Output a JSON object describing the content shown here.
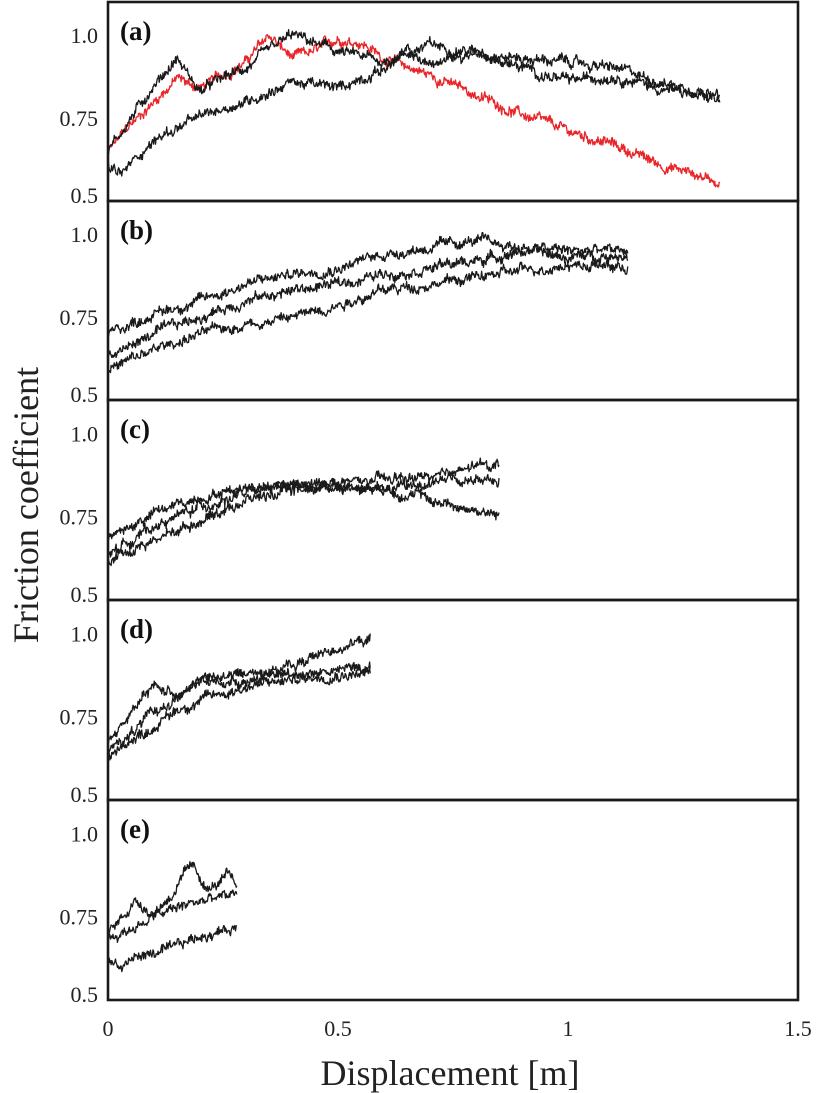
{
  "chart_data": {
    "type": "line",
    "xlabel": "Displacement [m]",
    "ylabel": "Friction coefficient",
    "xlim": [
      0,
      1.5
    ],
    "ylim": [
      0.5,
      1.1
    ],
    "x_ticks": [
      "0",
      "0.5",
      "1",
      "1.5"
    ],
    "y_ticks": [
      "0.5",
      "0.75",
      "1.0"
    ],
    "colors": {
      "black": "#1a1a1a",
      "red": "#e8262a"
    },
    "panels": [
      {
        "label": "(a)",
        "series": [
          {
            "color": "red",
            "x": [
              0,
              0.05,
              0.1,
              0.15,
              0.2,
              0.25,
              0.3,
              0.35,
              0.4,
              0.45,
              0.5,
              0.55,
              0.6,
              0.7,
              0.8,
              0.9,
              1.0,
              1.1,
              1.2,
              1.33
            ],
            "y": [
              0.65,
              0.73,
              0.8,
              0.87,
              0.84,
              0.88,
              0.92,
              1.0,
              0.93,
              0.95,
              0.99,
              0.98,
              0.93,
              0.88,
              0.82,
              0.76,
              0.71,
              0.67,
              0.61,
              0.56
            ]
          },
          {
            "color": "black",
            "x": [
              0,
              0.05,
              0.1,
              0.15,
              0.2,
              0.25,
              0.3,
              0.35,
              0.4,
              0.5,
              0.6,
              0.7,
              0.8,
              0.9,
              1.0,
              1.1,
              1.2,
              1.33
            ],
            "y": [
              0.65,
              0.75,
              0.85,
              0.93,
              0.83,
              0.87,
              0.9,
              0.95,
              1.0,
              0.95,
              0.92,
              0.97,
              0.95,
              0.93,
              0.92,
              0.9,
              0.86,
              0.82
            ]
          },
          {
            "color": "black",
            "x": [
              0,
              0.03,
              0.08,
              0.12,
              0.18,
              0.25,
              0.3,
              0.35,
              0.4,
              0.5,
              0.6,
              0.65,
              0.7,
              0.8,
              0.9,
              1.0,
              1.1,
              1.2,
              1.33
            ],
            "y": [
              0.6,
              0.58,
              0.66,
              0.7,
              0.74,
              0.78,
              0.8,
              0.83,
              0.86,
              0.84,
              0.9,
              0.95,
              0.91,
              0.95,
              0.9,
              0.86,
              0.88,
              0.84,
              0.8
            ]
          }
        ]
      },
      {
        "label": "(b)",
        "series": [
          {
            "color": "black",
            "x": [
              0,
              0.1,
              0.2,
              0.3,
              0.4,
              0.5,
              0.6,
              0.7,
              0.8,
              0.9,
              1.0,
              1.13
            ],
            "y": [
              0.7,
              0.76,
              0.8,
              0.85,
              0.88,
              0.9,
              0.94,
              0.96,
              0.98,
              0.96,
              0.95,
              0.95
            ]
          },
          {
            "color": "black",
            "x": [
              0,
              0.1,
              0.2,
              0.3,
              0.4,
              0.5,
              0.6,
              0.7,
              0.8,
              0.9,
              1.0,
              1.13
            ],
            "y": [
              0.63,
              0.7,
              0.75,
              0.8,
              0.83,
              0.85,
              0.88,
              0.9,
              0.92,
              0.95,
              0.93,
              0.94
            ]
          },
          {
            "color": "black",
            "x": [
              0,
              0.1,
              0.2,
              0.3,
              0.4,
              0.5,
              0.6,
              0.7,
              0.8,
              0.9,
              1.0,
              1.13
            ],
            "y": [
              0.59,
              0.65,
              0.7,
              0.73,
              0.75,
              0.79,
              0.83,
              0.85,
              0.87,
              0.89,
              0.91,
              0.9
            ]
          }
        ]
      },
      {
        "label": "(c)",
        "series": [
          {
            "color": "black",
            "x": [
              0,
              0.1,
              0.2,
              0.3,
              0.4,
              0.5,
              0.6,
              0.7,
              0.8,
              0.85
            ],
            "y": [
              0.68,
              0.76,
              0.81,
              0.84,
              0.85,
              0.84,
              0.83,
              0.85,
              0.9,
              0.91
            ]
          },
          {
            "color": "black",
            "x": [
              0,
              0.1,
              0.2,
              0.3,
              0.4,
              0.5,
              0.6,
              0.7,
              0.8,
              0.85
            ],
            "y": [
              0.64,
              0.72,
              0.78,
              0.82,
              0.84,
              0.85,
              0.86,
              0.87,
              0.86,
              0.85
            ]
          },
          {
            "color": "black",
            "x": [
              0,
              0.1,
              0.2,
              0.3,
              0.4,
              0.5,
              0.6,
              0.7,
              0.8,
              0.85
            ],
            "y": [
              0.62,
              0.68,
              0.74,
              0.8,
              0.83,
              0.84,
              0.84,
              0.8,
              0.77,
              0.75
            ]
          }
        ]
      },
      {
        "label": "(d)",
        "series": [
          {
            "color": "black",
            "x": [
              0,
              0.05,
              0.1,
              0.15,
              0.2,
              0.3,
              0.4,
              0.5,
              0.57
            ],
            "y": [
              0.68,
              0.76,
              0.84,
              0.82,
              0.86,
              0.88,
              0.9,
              0.96,
              0.98
            ]
          },
          {
            "color": "black",
            "x": [
              0,
              0.05,
              0.1,
              0.15,
              0.2,
              0.3,
              0.4,
              0.5,
              0.57
            ],
            "y": [
              0.65,
              0.7,
              0.76,
              0.81,
              0.85,
              0.86,
              0.88,
              0.89,
              0.9
            ]
          },
          {
            "color": "black",
            "x": [
              0,
              0.05,
              0.1,
              0.15,
              0.2,
              0.3,
              0.4,
              0.5,
              0.57
            ],
            "y": [
              0.63,
              0.68,
              0.72,
              0.77,
              0.8,
              0.84,
              0.86,
              0.88,
              0.88
            ]
          }
        ]
      },
      {
        "label": "(e)",
        "series": [
          {
            "color": "black",
            "x": [
              0,
              0.03,
              0.06,
              0.1,
              0.14,
              0.18,
              0.22,
              0.26,
              0.28
            ],
            "y": [
              0.7,
              0.75,
              0.8,
              0.76,
              0.82,
              0.9,
              0.83,
              0.87,
              0.84
            ]
          },
          {
            "color": "black",
            "x": [
              0,
              0.03,
              0.06,
              0.1,
              0.14,
              0.18,
              0.22,
              0.26,
              0.28
            ],
            "y": [
              0.68,
              0.7,
              0.72,
              0.75,
              0.77,
              0.79,
              0.8,
              0.81,
              0.82
            ]
          },
          {
            "color": "black",
            "x": [
              0,
              0.03,
              0.06,
              0.1,
              0.14,
              0.18,
              0.22,
              0.26,
              0.28
            ],
            "y": [
              0.62,
              0.6,
              0.63,
              0.64,
              0.65,
              0.68,
              0.7,
              0.71,
              0.72
            ]
          }
        ]
      }
    ]
  }
}
